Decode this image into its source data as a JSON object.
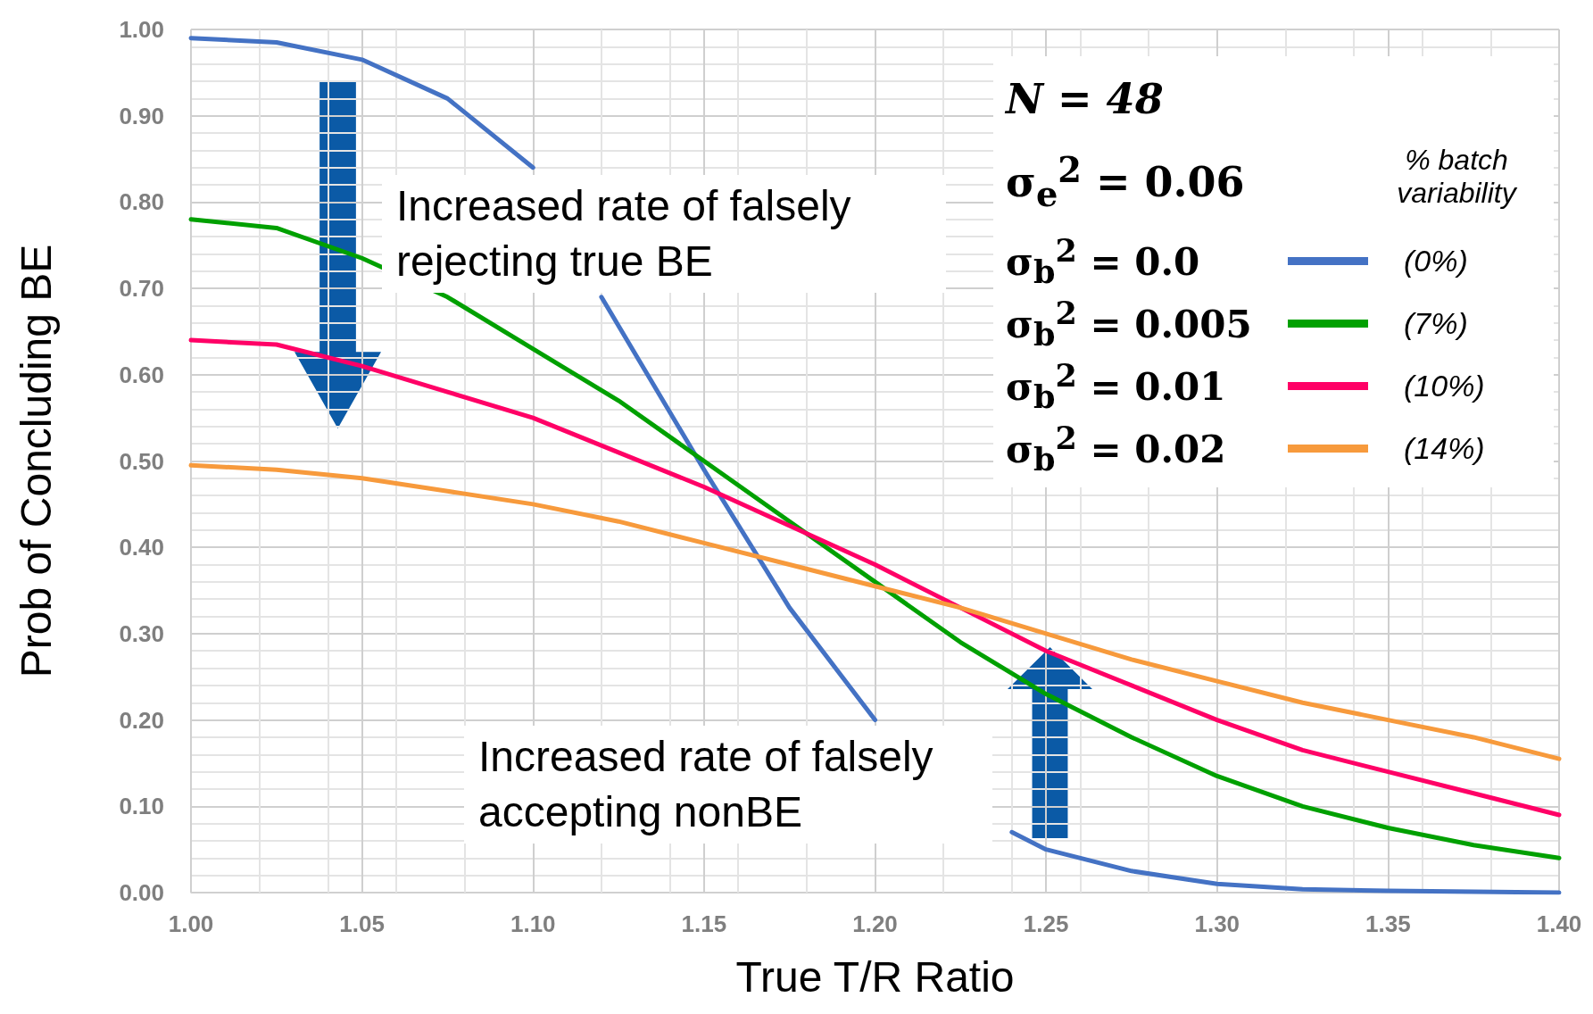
{
  "chart_data": {
    "type": "line",
    "xlabel": "True T/R Ratio",
    "ylabel": "Prob of Concluding BE",
    "legend_title": "% batch variability",
    "x": [
      1.0,
      1.025,
      1.05,
      1.075,
      1.1,
      1.125,
      1.15,
      1.175,
      1.2,
      1.225,
      1.25,
      1.275,
      1.3,
      1.325,
      1.35,
      1.375,
      1.4
    ],
    "series": [
      {
        "name": "σ$_{b}$$^{2}$ = 0.0",
        "color": "#4472c4",
        "x": [
          1.0,
          1.025,
          1.05,
          1.075,
          1.1,
          1.11,
          1.12,
          1.15,
          1.175,
          1.2,
          1.22,
          1.24,
          1.25,
          1.275,
          1.3,
          1.325,
          1.35,
          1.375,
          1.4
        ],
        "values": [
          0.99,
          0.985,
          0.965,
          0.92,
          0.84,
          null,
          0.69,
          0.49,
          0.33,
          0.2,
          null,
          0.07,
          0.05,
          0.025,
          0.01,
          0.004,
          0.002,
          0.001,
          0.0
        ]
      },
      {
        "name": "σ$_{b}$$^{2}$ = 0.005",
        "color": "#00a000",
        "values": [
          0.78,
          0.77,
          0.735,
          0.69,
          0.63,
          0.57,
          0.5,
          0.43,
          0.36,
          0.29,
          0.23,
          0.18,
          0.135,
          0.1,
          0.075,
          0.055,
          0.04
        ]
      },
      {
        "name": "σ$_{b}$$^{2}$ = 0.01",
        "color": "#ff0066",
        "values": [
          0.64,
          0.635,
          0.61,
          0.58,
          0.55,
          0.51,
          0.47,
          0.425,
          0.38,
          0.33,
          0.28,
          0.24,
          0.2,
          0.165,
          0.14,
          0.115,
          0.09
        ]
      },
      {
        "name": "σ$_{b}$$^{2}$ = 0.02",
        "color": "#f79a3c",
        "values": [
          0.495,
          0.49,
          0.48,
          0.465,
          0.45,
          0.43,
          0.405,
          0.38,
          0.355,
          0.33,
          0.3,
          0.27,
          0.245,
          0.22,
          0.2,
          0.18,
          0.155
        ]
      }
    ],
    "annotations": [
      "N = 48",
      "σ$_{e}$$^{2}$ = 0.06",
      "(0%)",
      "(7%)",
      "(10%)",
      "(14%)",
      "Increased rate of falsely rejecting true BE",
      "Increased rate of falsely accepting nonBE"
    ],
    "xlim": [
      1.0,
      1.4
    ],
    "xticks": [
      {
        "value": 1.0,
        "label": "1.00"
      },
      {
        "value": 1.05,
        "label": "1.05"
      },
      {
        "value": 1.1,
        "label": "1.10"
      },
      {
        "value": 1.15,
        "label": "1.15"
      },
      {
        "value": 1.2,
        "label": "1.20"
      },
      {
        "value": 1.25,
        "label": "1.25"
      },
      {
        "value": 1.3,
        "label": "1.30"
      },
      {
        "value": 1.35,
        "label": "1.35"
      },
      {
        "value": 1.4,
        "label": "1.40"
      }
    ],
    "ylim": [
      0.0,
      1.0
    ],
    "yticks": [
      {
        "value": 0.0,
        "label": "0.00"
      },
      {
        "value": 0.1,
        "label": "0.10"
      },
      {
        "value": 0.2,
        "label": "0.20"
      },
      {
        "value": 0.3,
        "label": "0.30"
      },
      {
        "value": 0.4,
        "label": "0.40"
      },
      {
        "value": 0.5,
        "label": "0.50"
      },
      {
        "value": 0.6,
        "label": "0.60"
      },
      {
        "value": 0.7,
        "label": "0.70"
      },
      {
        "value": 0.8,
        "label": "0.80"
      },
      {
        "value": 0.9,
        "label": "0.90"
      },
      {
        "value": 1.0,
        "label": "1.00"
      }
    ],
    "grid": true,
    "legend": "top right",
    "marker": "none",
    "line_style": "solid"
  }
}
